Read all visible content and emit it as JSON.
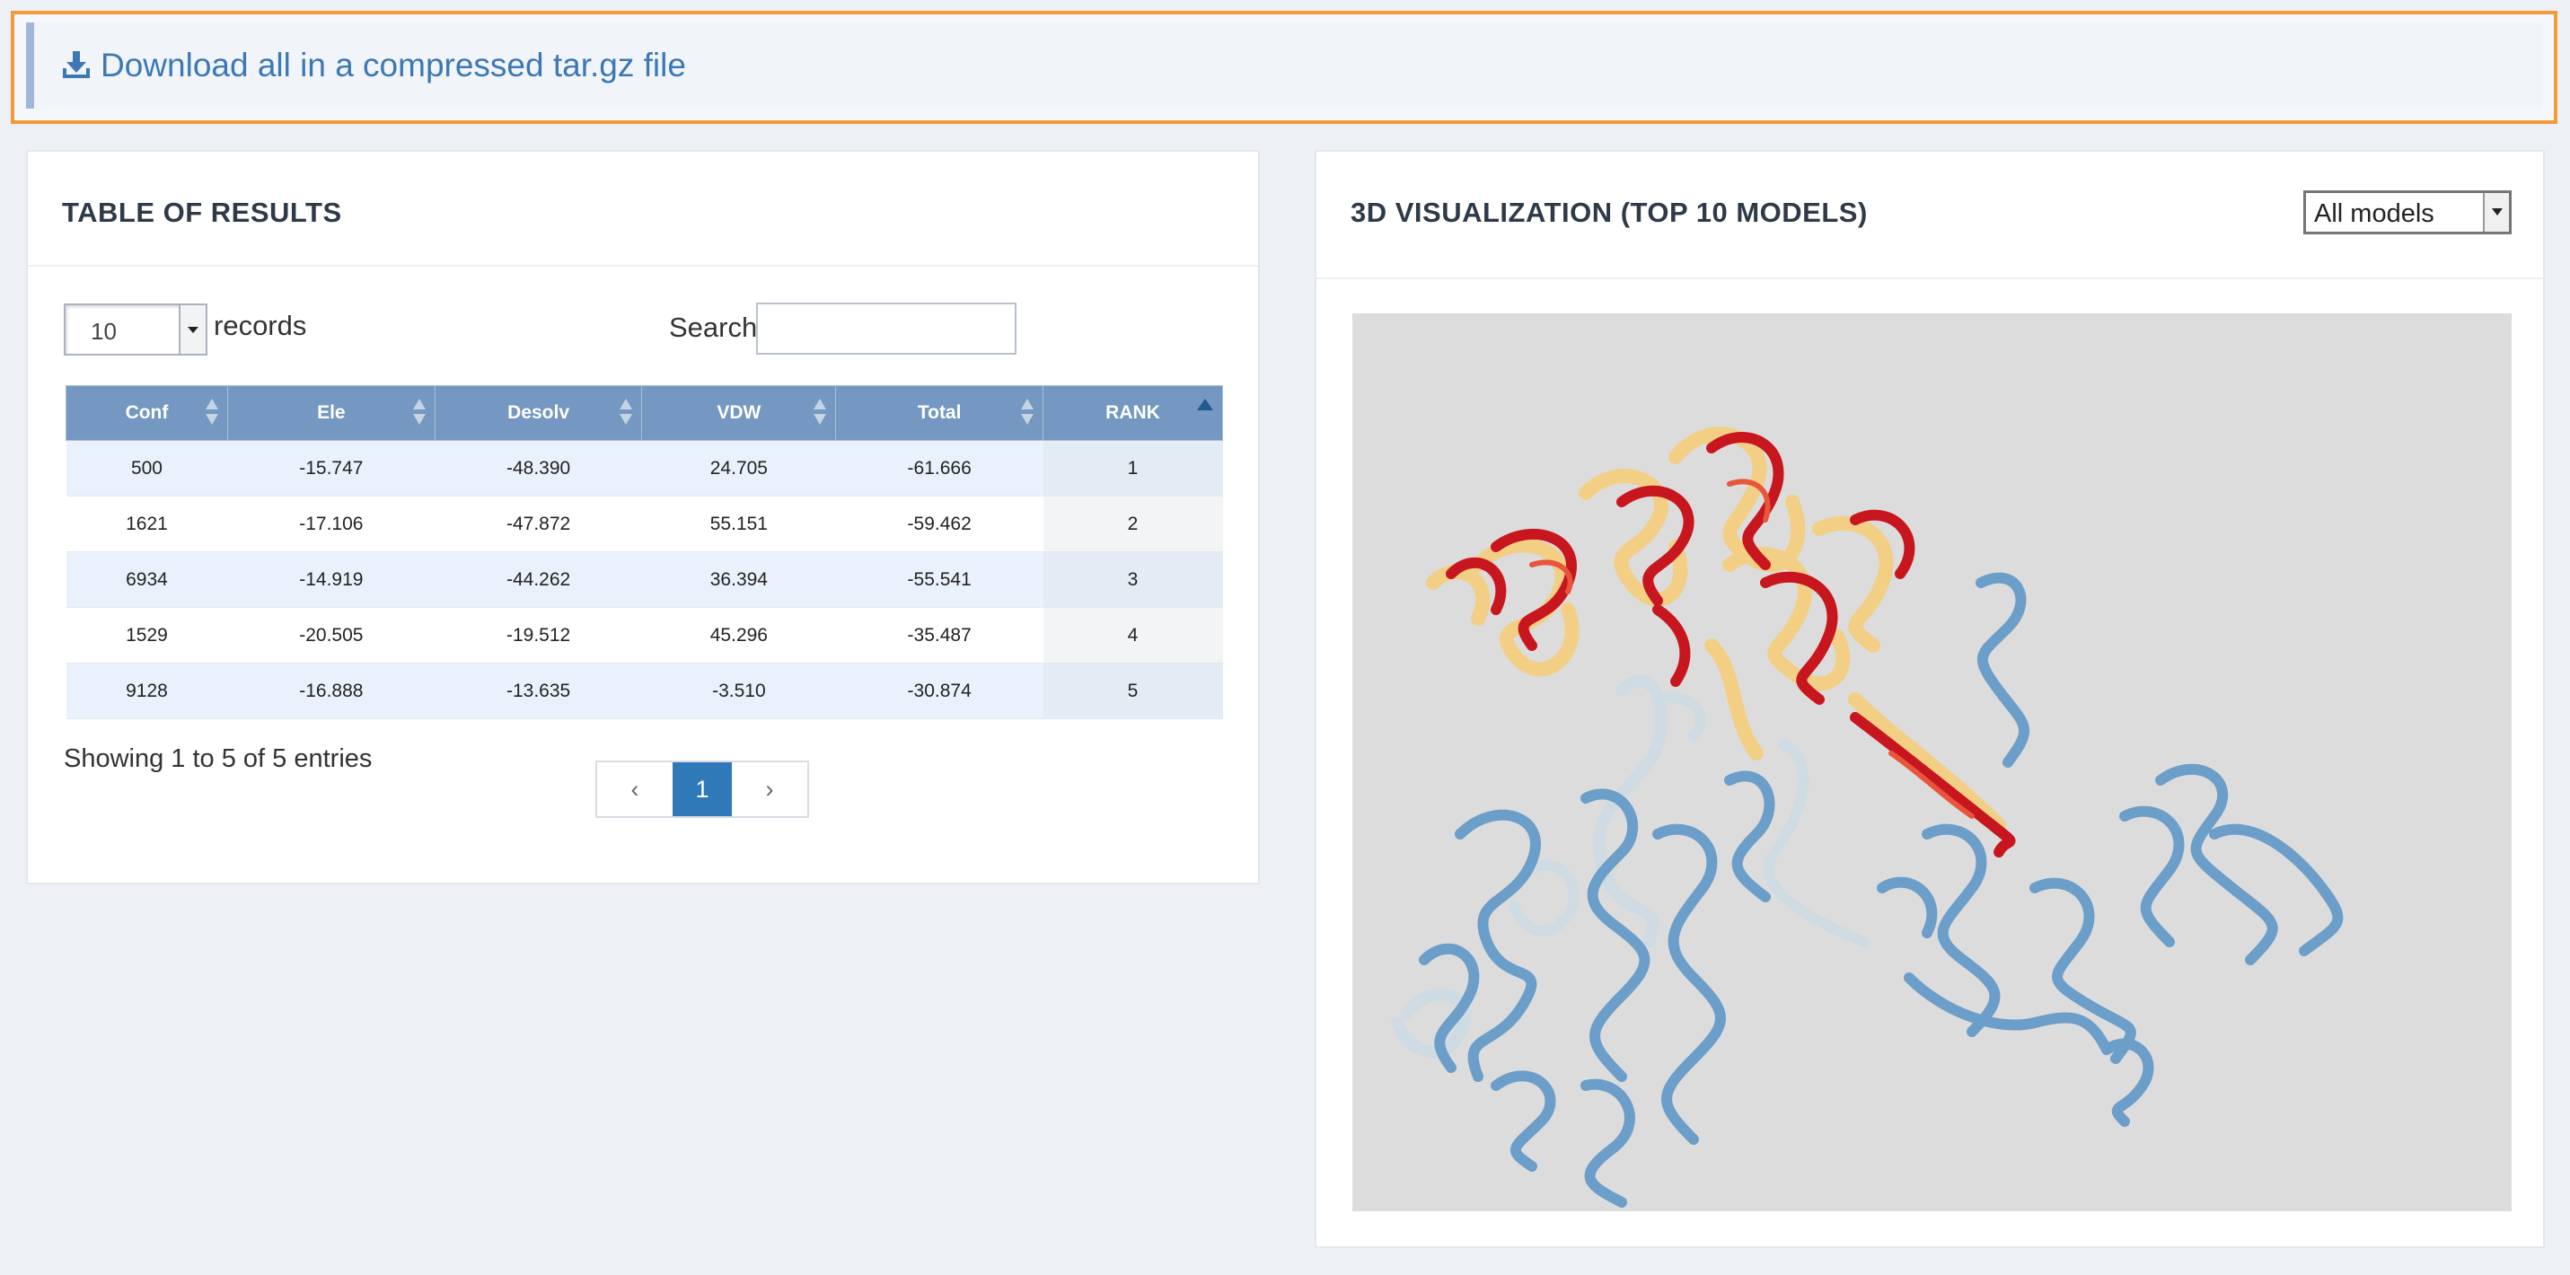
{
  "download": {
    "label": "Download all in a compressed tar.gz file",
    "icon": "download-icon"
  },
  "results_panel": {
    "title": "TABLE OF RESULTS",
    "length_value": "10",
    "records_label": "records",
    "search_label": "Search:",
    "search_value": "",
    "columns": [
      "Conf",
      "Ele",
      "Desolv",
      "VDW",
      "Total",
      "RANK"
    ],
    "rows": [
      [
        "500",
        "-15.747",
        "-48.390",
        "24.705",
        "-61.666",
        "1"
      ],
      [
        "1621",
        "-17.106",
        "-47.872",
        "55.151",
        "-59.462",
        "2"
      ],
      [
        "6934",
        "-14.919",
        "-44.262",
        "36.394",
        "-55.541",
        "3"
      ],
      [
        "1529",
        "-20.505",
        "-19.512",
        "45.296",
        "-35.487",
        "4"
      ],
      [
        "9128",
        "-16.888",
        "-13.635",
        "-3.510",
        "-30.874",
        "5"
      ]
    ],
    "info": "Showing 1 to 5 of 5 entries",
    "pagination": {
      "prev": "‹",
      "current": "1",
      "next": "›"
    }
  },
  "viz_panel": {
    "title": "3D VISUALIZATION (TOP 10 MODELS)",
    "model_select": "All models"
  },
  "colors": {
    "accent": "#3c78b4",
    "highlight_border": "#f39a3b",
    "table_header": "#7498c1",
    "ligand_red": "#c7161e",
    "ligand_tan": "#f2cf85",
    "receptor_blue": "#6b9ec8",
    "receptor_light": "#cfdbe3"
  }
}
